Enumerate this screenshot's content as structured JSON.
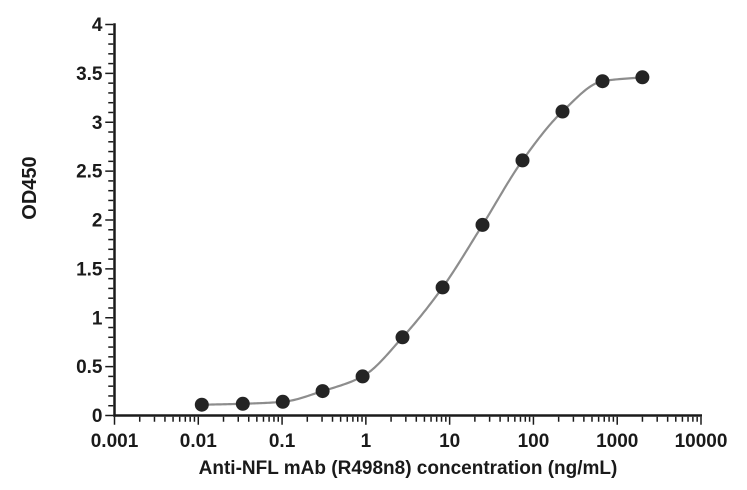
{
  "chart_data": {
    "type": "scatter",
    "title": "",
    "xlabel": "Anti-NFL mAb (R498n8) concentration (ng/mL)",
    "ylabel": "OD450",
    "xscale": "log",
    "xlim": [
      0.001,
      10000
    ],
    "ylim": [
      0,
      4
    ],
    "grid": false,
    "legend": false,
    "x_tick_values": [
      0.001,
      0.01,
      0.1,
      1,
      10,
      100,
      1000,
      10000
    ],
    "x_tick_labels": [
      "0.001",
      "0.01",
      "0.1",
      "1",
      "10",
      "100",
      "1000",
      "10000"
    ],
    "y_tick_values": [
      0,
      0.5,
      1,
      1.5,
      2,
      2.5,
      3,
      3.5,
      4
    ],
    "y_tick_labels": [
      "0",
      "0.5",
      "1",
      "1.5",
      "2",
      "2.5",
      "3",
      "3.5",
      "4"
    ],
    "y_minor_step": 0.1,
    "x_minor_ticks": "log-decades 2-9",
    "series": [
      {
        "x": [
          0.011,
          0.034,
          0.102,
          0.305,
          0.914,
          2.74,
          8.23,
          24.7,
          74.1,
          222.2,
          666.7,
          2000
        ],
        "y": [
          0.11,
          0.12,
          0.14,
          0.25,
          0.4,
          0.8,
          1.31,
          1.95,
          2.61,
          3.11,
          3.42,
          3.46
        ]
      }
    ]
  },
  "colors": {
    "marker": "#242424",
    "curve": "#8d8d8d",
    "axis": "#1a1a1a",
    "text": "#1a1a1a",
    "background": "#ffffff"
  }
}
